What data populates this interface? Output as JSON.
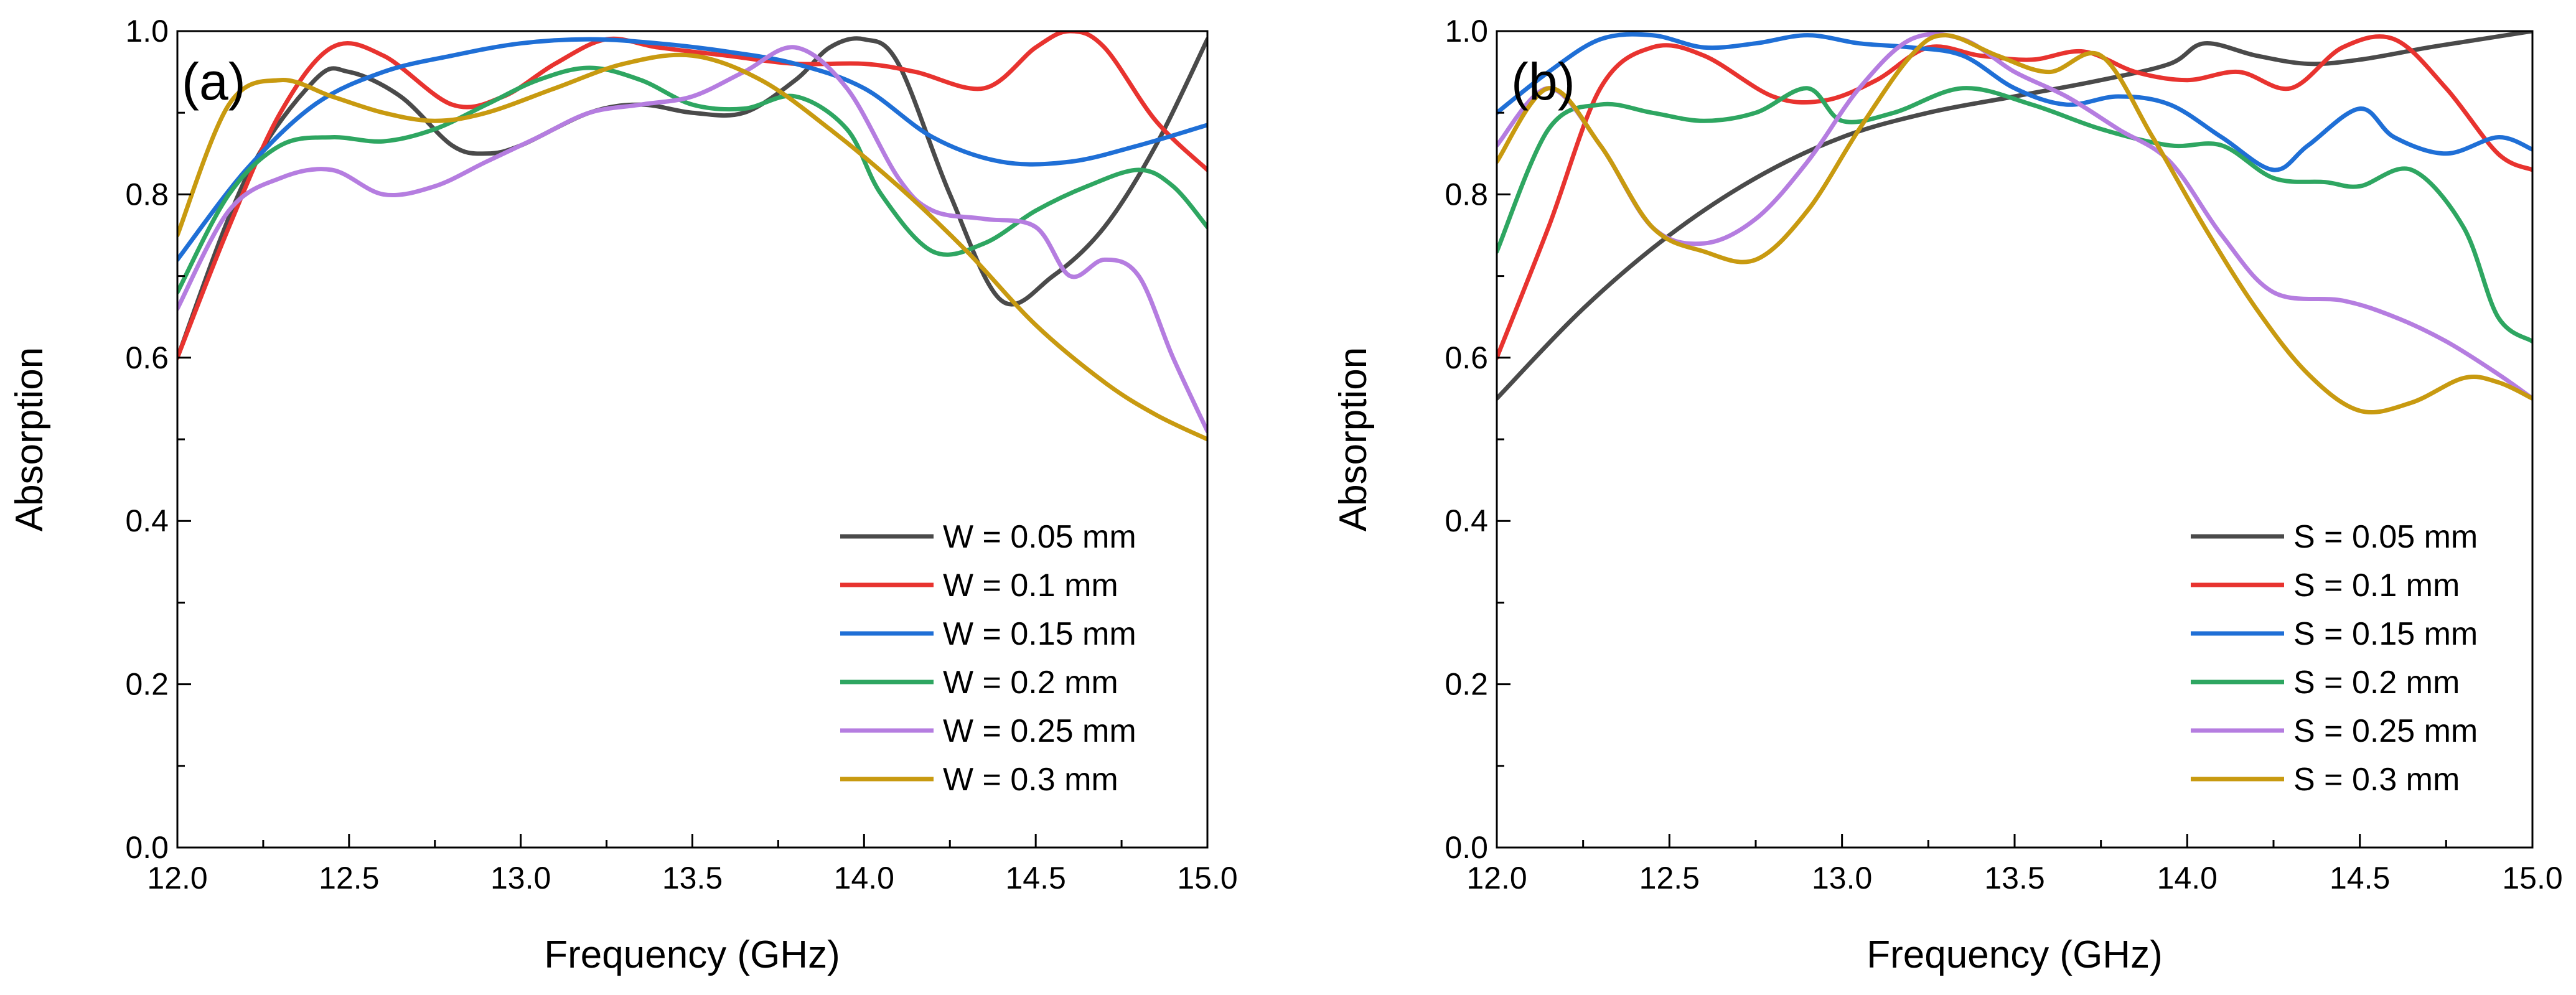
{
  "chart_data": [
    {
      "type": "line",
      "panel_label": "(a)",
      "xlabel": "Frequency (GHz)",
      "ylabel": "Absorption",
      "xlim": [
        12.0,
        15.0
      ],
      "ylim": [
        0.0,
        1.0
      ],
      "x_ticks": [
        "12.0",
        "12.5",
        "13.0",
        "13.5",
        "14.0",
        "14.5",
        "15.0"
      ],
      "y_ticks": [
        "0.0",
        "0.2",
        "0.4",
        "0.6",
        "0.8",
        "1.0"
      ],
      "grid": false,
      "legend_position": "bottom-right",
      "series": [
        {
          "name": "W = 0.05 mm",
          "color": "#4a4a4a",
          "x": [
            12.0,
            12.2,
            12.4,
            12.5,
            12.65,
            12.8,
            12.9,
            13.0,
            13.2,
            13.35,
            13.5,
            13.65,
            13.8,
            13.9,
            14.0,
            14.1,
            14.25,
            14.4,
            14.55,
            14.7,
            14.85,
            15.0
          ],
          "y": [
            0.6,
            0.82,
            0.94,
            0.95,
            0.92,
            0.86,
            0.85,
            0.86,
            0.9,
            0.91,
            0.9,
            0.9,
            0.94,
            0.98,
            0.99,
            0.96,
            0.8,
            0.67,
            0.7,
            0.76,
            0.86,
            0.99
          ]
        },
        {
          "name": "W = 0.1 mm",
          "color": "#e8332f",
          "x": [
            12.0,
            12.15,
            12.3,
            12.45,
            12.6,
            12.8,
            12.95,
            13.1,
            13.25,
            13.4,
            13.6,
            13.8,
            14.0,
            14.15,
            14.35,
            14.5,
            14.6,
            14.7,
            14.85,
            15.0
          ],
          "y": [
            0.6,
            0.76,
            0.9,
            0.98,
            0.97,
            0.91,
            0.92,
            0.96,
            0.99,
            0.98,
            0.97,
            0.96,
            0.96,
            0.95,
            0.93,
            0.98,
            1.0,
            0.98,
            0.89,
            0.83
          ]
        },
        {
          "name": "W = 0.15 mm",
          "color": "#1f6fd6",
          "x": [
            12.0,
            12.2,
            12.4,
            12.6,
            12.8,
            13.0,
            13.2,
            13.4,
            13.6,
            13.8,
            14.0,
            14.2,
            14.4,
            14.6,
            14.8,
            15.0
          ],
          "y": [
            0.72,
            0.83,
            0.91,
            0.95,
            0.97,
            0.985,
            0.99,
            0.985,
            0.975,
            0.96,
            0.93,
            0.87,
            0.84,
            0.84,
            0.86,
            0.885
          ]
        },
        {
          "name": "W = 0.2 mm",
          "color": "#2ea661",
          "x": [
            12.0,
            12.15,
            12.3,
            12.45,
            12.6,
            12.75,
            12.9,
            13.05,
            13.2,
            13.35,
            13.5,
            13.65,
            13.8,
            13.95,
            14.05,
            14.2,
            14.35,
            14.5,
            14.65,
            14.8,
            14.9,
            15.0
          ],
          "y": [
            0.68,
            0.8,
            0.86,
            0.87,
            0.865,
            0.88,
            0.91,
            0.94,
            0.955,
            0.94,
            0.91,
            0.905,
            0.92,
            0.88,
            0.8,
            0.73,
            0.74,
            0.78,
            0.81,
            0.83,
            0.81,
            0.76
          ]
        },
        {
          "name": "W = 0.25 mm",
          "color": "#b57de0",
          "x": [
            12.0,
            12.15,
            12.3,
            12.45,
            12.6,
            12.75,
            12.9,
            13.05,
            13.2,
            13.35,
            13.5,
            13.65,
            13.8,
            13.95,
            14.1,
            14.2,
            14.35,
            14.5,
            14.6,
            14.7,
            14.8,
            14.9,
            15.0
          ],
          "y": [
            0.66,
            0.78,
            0.82,
            0.83,
            0.8,
            0.81,
            0.84,
            0.87,
            0.9,
            0.91,
            0.92,
            0.95,
            0.98,
            0.93,
            0.82,
            0.78,
            0.77,
            0.76,
            0.7,
            0.72,
            0.7,
            0.6,
            0.51
          ]
        },
        {
          "name": "W = 0.3 mm",
          "color": "#c89a10",
          "x": [
            12.0,
            12.15,
            12.3,
            12.45,
            12.6,
            12.75,
            12.9,
            13.1,
            13.3,
            13.5,
            13.7,
            13.9,
            14.1,
            14.3,
            14.5,
            14.7,
            14.85,
            15.0
          ],
          "y": [
            0.75,
            0.91,
            0.94,
            0.92,
            0.9,
            0.89,
            0.9,
            0.93,
            0.96,
            0.97,
            0.94,
            0.88,
            0.81,
            0.73,
            0.64,
            0.57,
            0.53,
            0.5
          ]
        }
      ]
    },
    {
      "type": "line",
      "panel_label": "(b)",
      "xlabel": "Frequency (GHz)",
      "ylabel": "Absorption",
      "xlim": [
        12.0,
        15.0
      ],
      "ylim": [
        0.0,
        1.0
      ],
      "x_ticks": [
        "12.0",
        "12.5",
        "13.0",
        "13.5",
        "14.0",
        "14.5",
        "15.0"
      ],
      "y_ticks": [
        "0.0",
        "0.2",
        "0.4",
        "0.6",
        "0.8",
        "1.0"
      ],
      "grid": false,
      "legend_position": "bottom-right",
      "series": [
        {
          "name": "S = 0.05 mm",
          "color": "#4a4a4a",
          "x": [
            12.0,
            12.25,
            12.5,
            12.75,
            13.0,
            13.25,
            13.5,
            13.75,
            13.95,
            14.05,
            14.2,
            14.35,
            14.5,
            14.7,
            14.85,
            15.0
          ],
          "y": [
            0.55,
            0.66,
            0.75,
            0.82,
            0.87,
            0.9,
            0.92,
            0.94,
            0.96,
            0.985,
            0.97,
            0.96,
            0.965,
            0.98,
            0.99,
            1.0
          ]
        },
        {
          "name": "S = 0.1 mm",
          "color": "#e8332f",
          "x": [
            12.0,
            12.15,
            12.3,
            12.45,
            12.6,
            12.8,
            12.95,
            13.1,
            13.25,
            13.4,
            13.55,
            13.7,
            13.85,
            14.0,
            14.15,
            14.3,
            14.45,
            14.6,
            14.75,
            14.9,
            15.0
          ],
          "y": [
            0.6,
            0.76,
            0.93,
            0.98,
            0.97,
            0.92,
            0.915,
            0.94,
            0.98,
            0.97,
            0.965,
            0.975,
            0.95,
            0.94,
            0.95,
            0.93,
            0.98,
            0.99,
            0.93,
            0.85,
            0.83
          ]
        },
        {
          "name": "S = 0.15 mm",
          "color": "#1f6fd6",
          "x": [
            12.0,
            12.15,
            12.3,
            12.45,
            12.6,
            12.75,
            12.9,
            13.05,
            13.2,
            13.35,
            13.5,
            13.65,
            13.8,
            13.95,
            14.1,
            14.25,
            14.35,
            14.5,
            14.6,
            14.75,
            14.9,
            15.0
          ],
          "y": [
            0.9,
            0.95,
            0.99,
            0.995,
            0.98,
            0.985,
            0.995,
            0.985,
            0.98,
            0.97,
            0.93,
            0.91,
            0.92,
            0.91,
            0.87,
            0.83,
            0.86,
            0.905,
            0.87,
            0.85,
            0.87,
            0.855
          ]
        },
        {
          "name": "S = 0.2 mm",
          "color": "#2ea661",
          "x": [
            12.0,
            12.15,
            12.3,
            12.45,
            12.6,
            12.75,
            12.9,
            13.0,
            13.15,
            13.35,
            13.55,
            13.75,
            13.95,
            14.1,
            14.25,
            14.4,
            14.5,
            14.65,
            14.8,
            14.9,
            15.0
          ],
          "y": [
            0.73,
            0.88,
            0.91,
            0.9,
            0.89,
            0.9,
            0.93,
            0.89,
            0.9,
            0.93,
            0.91,
            0.88,
            0.86,
            0.86,
            0.82,
            0.815,
            0.81,
            0.83,
            0.76,
            0.65,
            0.62
          ]
        },
        {
          "name": "S = 0.25 mm",
          "color": "#b57de0",
          "x": [
            12.0,
            12.15,
            12.3,
            12.45,
            12.6,
            12.75,
            12.9,
            13.05,
            13.2,
            13.35,
            13.5,
            13.65,
            13.8,
            13.95,
            14.1,
            14.25,
            14.45,
            14.6,
            14.75,
            14.9,
            15.0
          ],
          "y": [
            0.86,
            0.93,
            0.86,
            0.76,
            0.74,
            0.77,
            0.84,
            0.93,
            0.99,
            0.99,
            0.95,
            0.92,
            0.88,
            0.84,
            0.75,
            0.68,
            0.67,
            0.65,
            0.62,
            0.58,
            0.55
          ]
        },
        {
          "name": "S = 0.3 mm",
          "color": "#c89a10",
          "x": [
            12.0,
            12.15,
            12.3,
            12.45,
            12.6,
            12.75,
            12.9,
            13.05,
            13.2,
            13.3,
            13.45,
            13.6,
            13.75,
            13.9,
            14.05,
            14.2,
            14.35,
            14.5,
            14.65,
            14.8,
            14.9,
            15.0
          ],
          "y": [
            0.84,
            0.93,
            0.86,
            0.76,
            0.73,
            0.72,
            0.78,
            0.88,
            0.97,
            0.995,
            0.97,
            0.95,
            0.97,
            0.87,
            0.76,
            0.66,
            0.58,
            0.535,
            0.545,
            0.575,
            0.57,
            0.55
          ]
        }
      ]
    }
  ]
}
